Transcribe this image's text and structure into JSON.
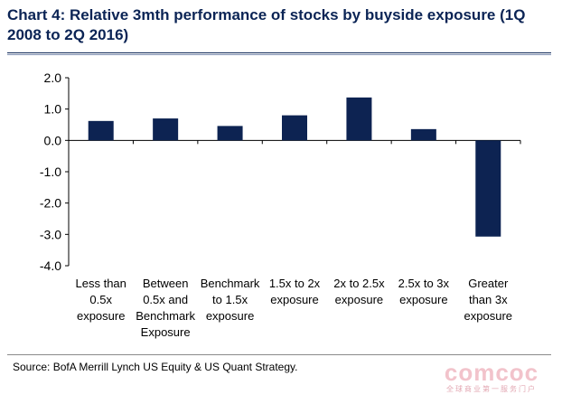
{
  "chart_data": {
    "type": "bar",
    "title": "Chart 4: Relative 3mth performance of stocks by buyside exposure (1Q 2008 to 2Q 2016)",
    "categories": [
      [
        "Less than",
        "0.5x",
        "exposure"
      ],
      [
        "Between",
        "0.5x and",
        "Benchmark",
        "Exposure"
      ],
      [
        "Benchmark",
        "to 1.5x",
        "exposure"
      ],
      [
        "1.5x to 2x",
        "exposure"
      ],
      [
        "2x to 2.5x",
        "exposure"
      ],
      [
        "2.5x to 3x",
        "exposure"
      ],
      [
        "Greater",
        "than 3x",
        "exposure"
      ]
    ],
    "values": [
      0.62,
      0.7,
      0.46,
      0.8,
      1.37,
      0.36,
      -3.07
    ],
    "ylim": [
      -4.0,
      2.0
    ],
    "yticks": [
      "2.0",
      "1.0",
      "0.0",
      "-1.0",
      "-2.0",
      "-3.0",
      "-4.0"
    ],
    "ytick_values": [
      2.0,
      1.0,
      0.0,
      -1.0,
      -2.0,
      -3.0,
      -4.0
    ],
    "xlabel": "",
    "ylabel": "",
    "grid": false,
    "bar_color": "#0d2352"
  },
  "source": "Source: BofA Merrill Lynch US Equity & US Quant Strategy.",
  "watermark": {
    "logo": "comcoc",
    "sub": "全球商业第一服务门户"
  }
}
